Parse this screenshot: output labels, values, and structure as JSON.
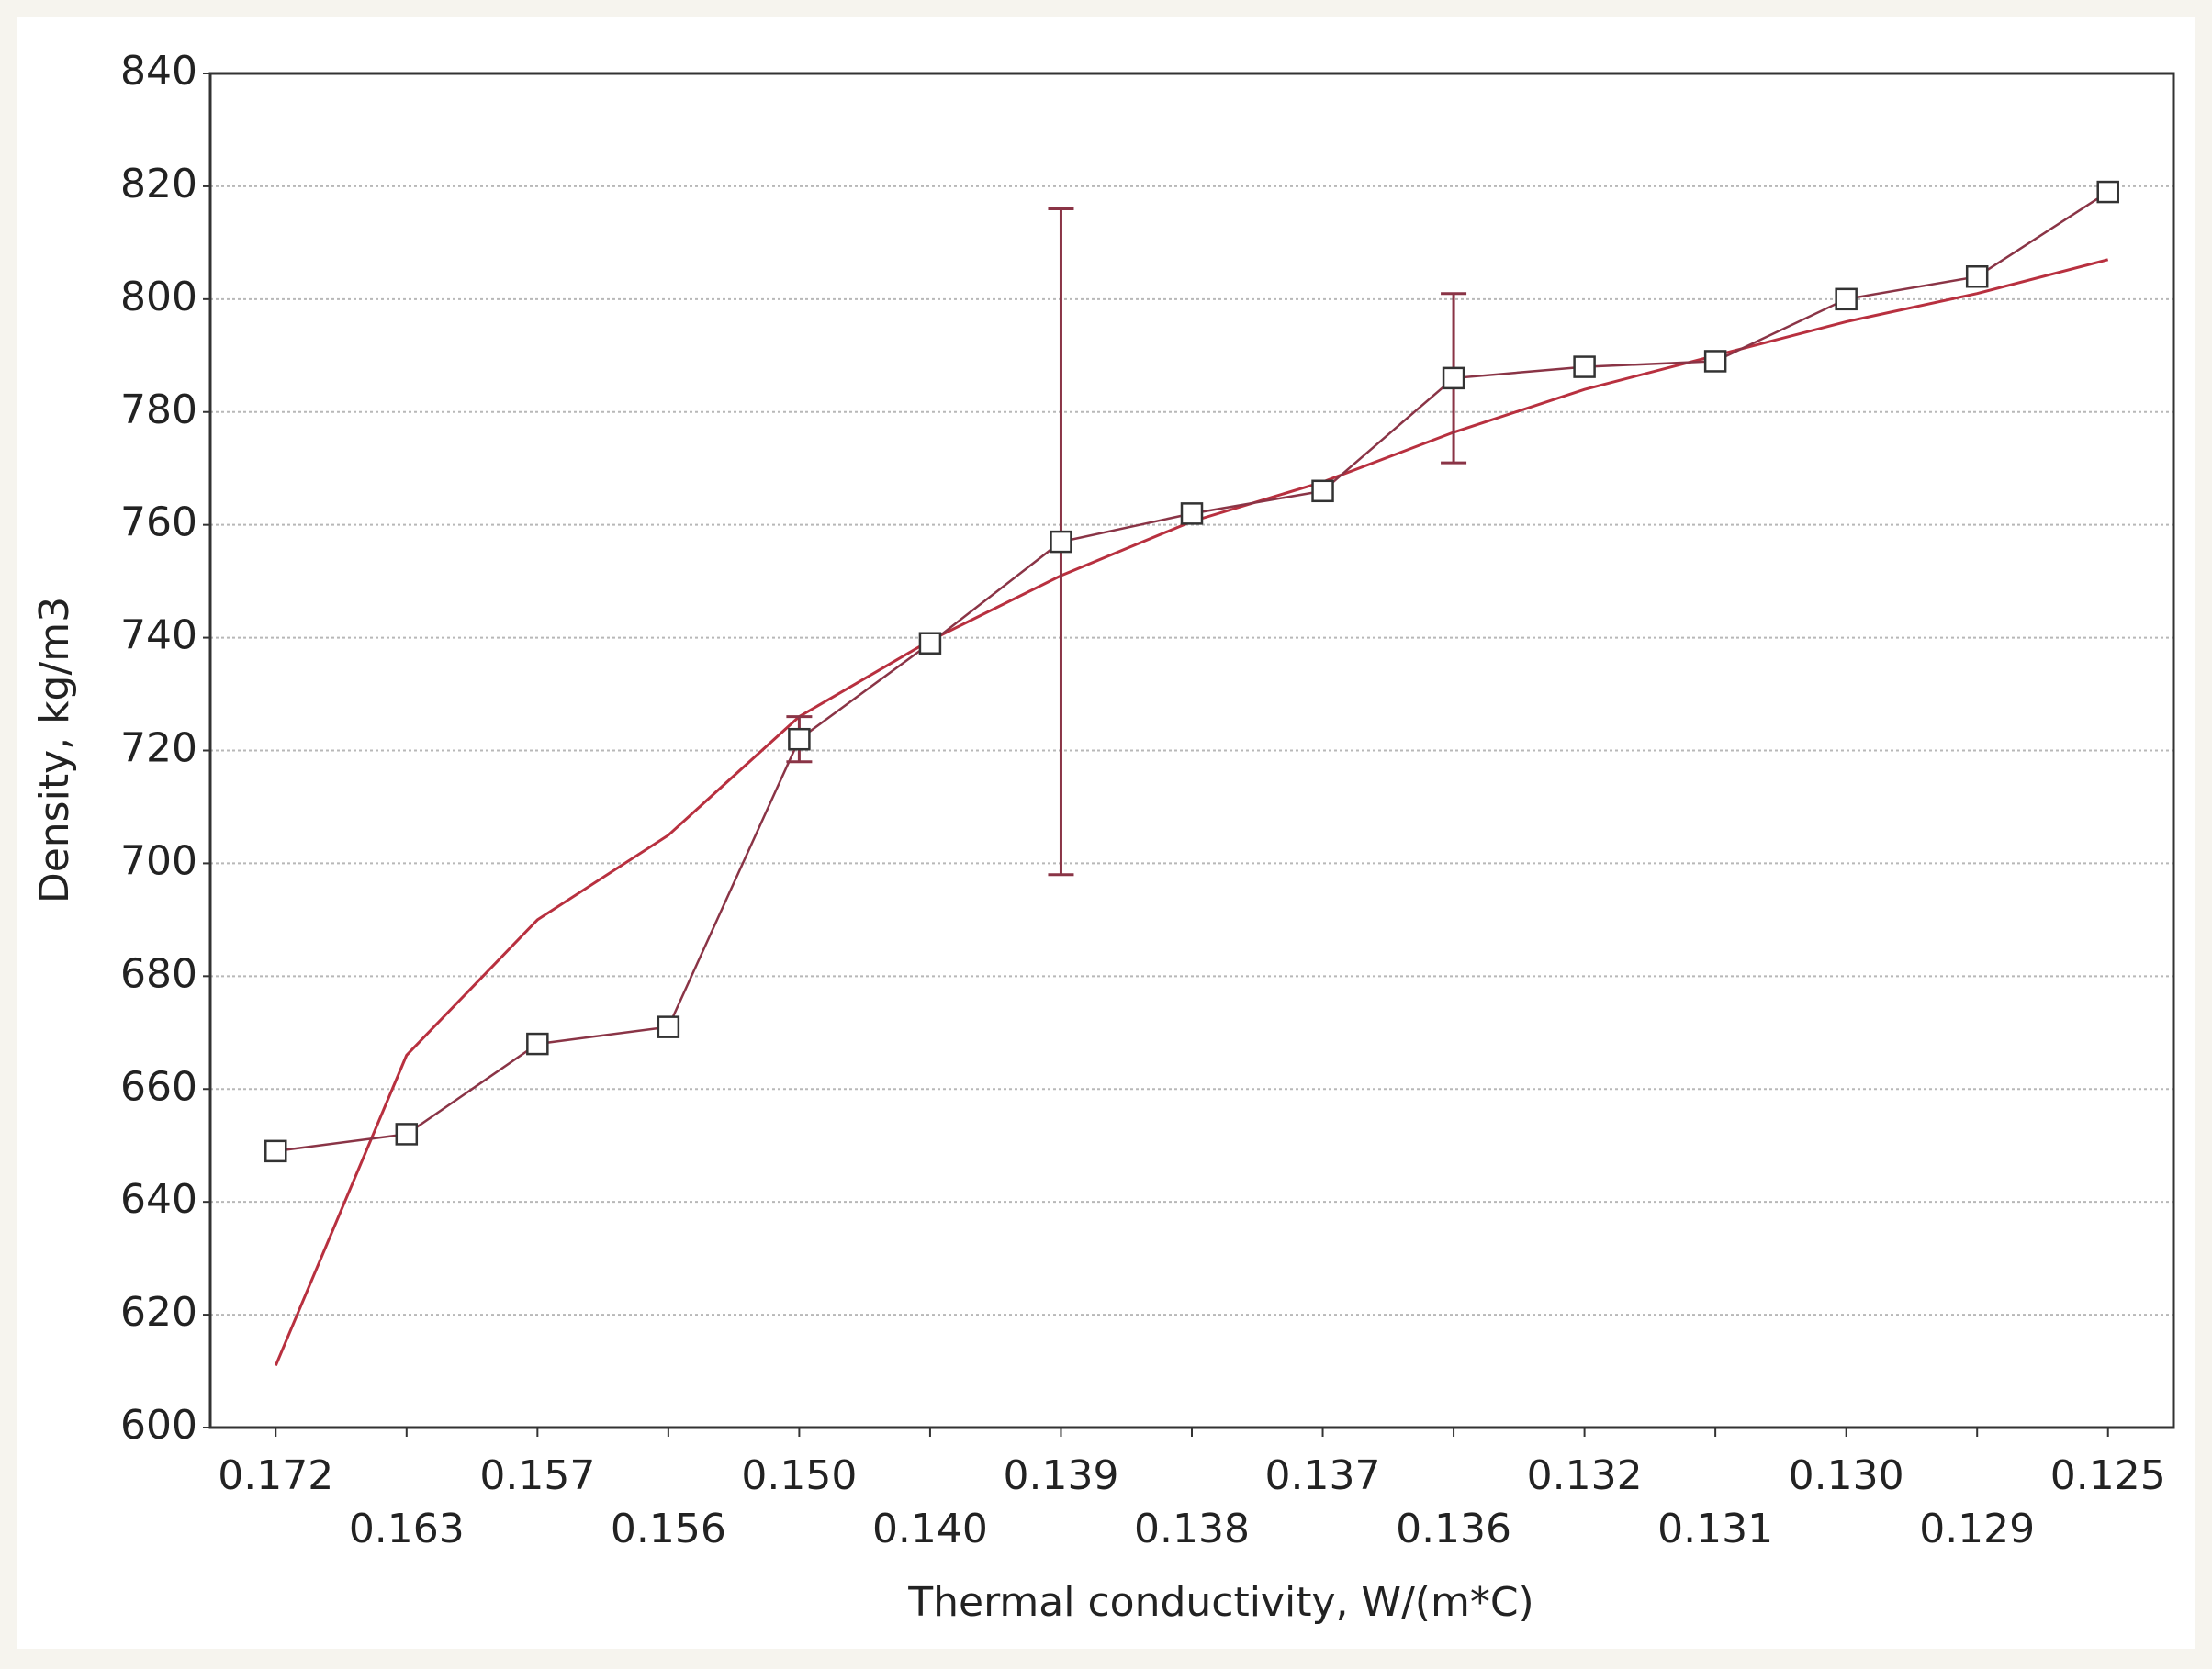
{
  "chart_data": {
    "type": "line",
    "x_label": "Thermal conductivity, W/(m*C)",
    "y_label": "Density, kg/m3",
    "categories": [
      "0.172",
      "0.163",
      "0.157",
      "0.156",
      "0.150",
      "0.140",
      "0.139",
      "0.138",
      "0.137",
      "0.136",
      "0.132",
      "0.131",
      "0.130",
      "0.129",
      "0.125"
    ],
    "series": [
      {
        "color": "#8a3446",
        "values": [
          649,
          652,
          668,
          671,
          722,
          739,
          757,
          762,
          766,
          786,
          788,
          789,
          800,
          804,
          819
        ],
        "errors": [
          null,
          null,
          null,
          null,
          4,
          null,
          59,
          null,
          null,
          15,
          null,
          null,
          null,
          null,
          null
        ]
      },
      {
        "color": "#b8303f",
        "values": [
          611,
          666,
          690,
          705,
          726,
          739.5,
          751,
          760.6,
          767.6,
          776.4,
          784,
          790,
          796,
          801,
          807
        ]
      }
    ],
    "ylim": [
      600,
      840
    ],
    "yticks": [
      600,
      620,
      640,
      660,
      680,
      700,
      720,
      740,
      760,
      780,
      800,
      820,
      840
    ],
    "grid": true
  }
}
